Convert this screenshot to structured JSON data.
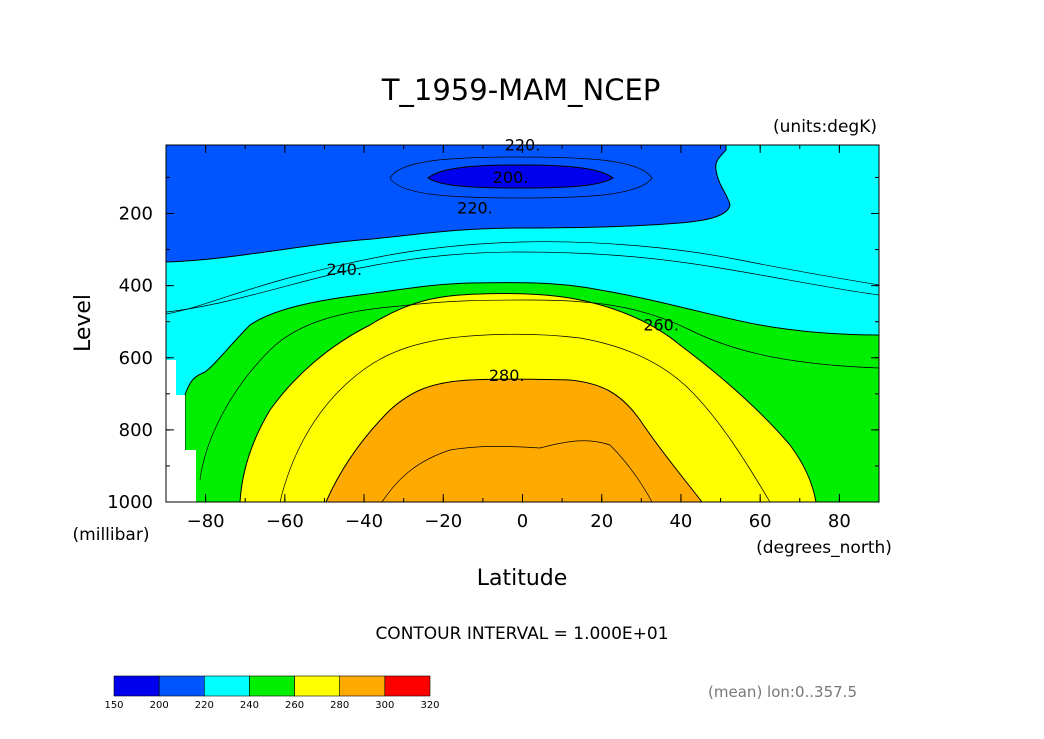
{
  "chart_data": {
    "type": "contour",
    "title": "T_1959-MAM_NCEP",
    "units_label": "(units:degK)",
    "xlabel": "Latitude",
    "xunits": "(degrees_north)",
    "ylabel": "Level",
    "yunits": "(millibar)",
    "xlim": [
      -90,
      90
    ],
    "ylim": [
      1000,
      10
    ],
    "xticks": [
      -80,
      -60,
      -40,
      -20,
      0,
      20,
      40,
      60,
      80
    ],
    "yticks": [
      200,
      400,
      600,
      800,
      1000
    ],
    "contour_interval_text": "CONTOUR INTERVAL = 1.000E+01",
    "contour_labels": [
      {
        "text": "220.",
        "x": 0,
        "y": 25
      },
      {
        "text": "200.",
        "x": -3,
        "y": 115
      },
      {
        "text": "220.",
        "x": -12,
        "y": 200
      },
      {
        "text": "240.",
        "x": -45,
        "y": 370
      },
      {
        "text": "260.",
        "x": 35,
        "y": 525
      },
      {
        "text": "280.",
        "x": -4,
        "y": 665
      }
    ],
    "filled_levels": [
      {
        "range": [
          200,
          220
        ],
        "color": "#0055ff"
      },
      {
        "range": [
          210,
          220
        ],
        "color": "#0044ee"
      },
      {
        "range": [
          220,
          240
        ],
        "color": "#00ffff"
      },
      {
        "range": [
          240,
          260
        ],
        "color": "#00ee00"
      },
      {
        "range": [
          260,
          280
        ],
        "color": "#ffff00"
      },
      {
        "range": [
          280,
          300
        ],
        "color": "#ffaa00"
      }
    ],
    "colorbar": {
      "levels": [
        150,
        200,
        220,
        240,
        260,
        280,
        300,
        320
      ],
      "colors": [
        "#0000ee",
        "#0055ff",
        "#00ffff",
        "#00ee00",
        "#ffff00",
        "#ffaa00",
        "#ff0000"
      ]
    },
    "footnote": "(mean) lon:0..357.5"
  }
}
